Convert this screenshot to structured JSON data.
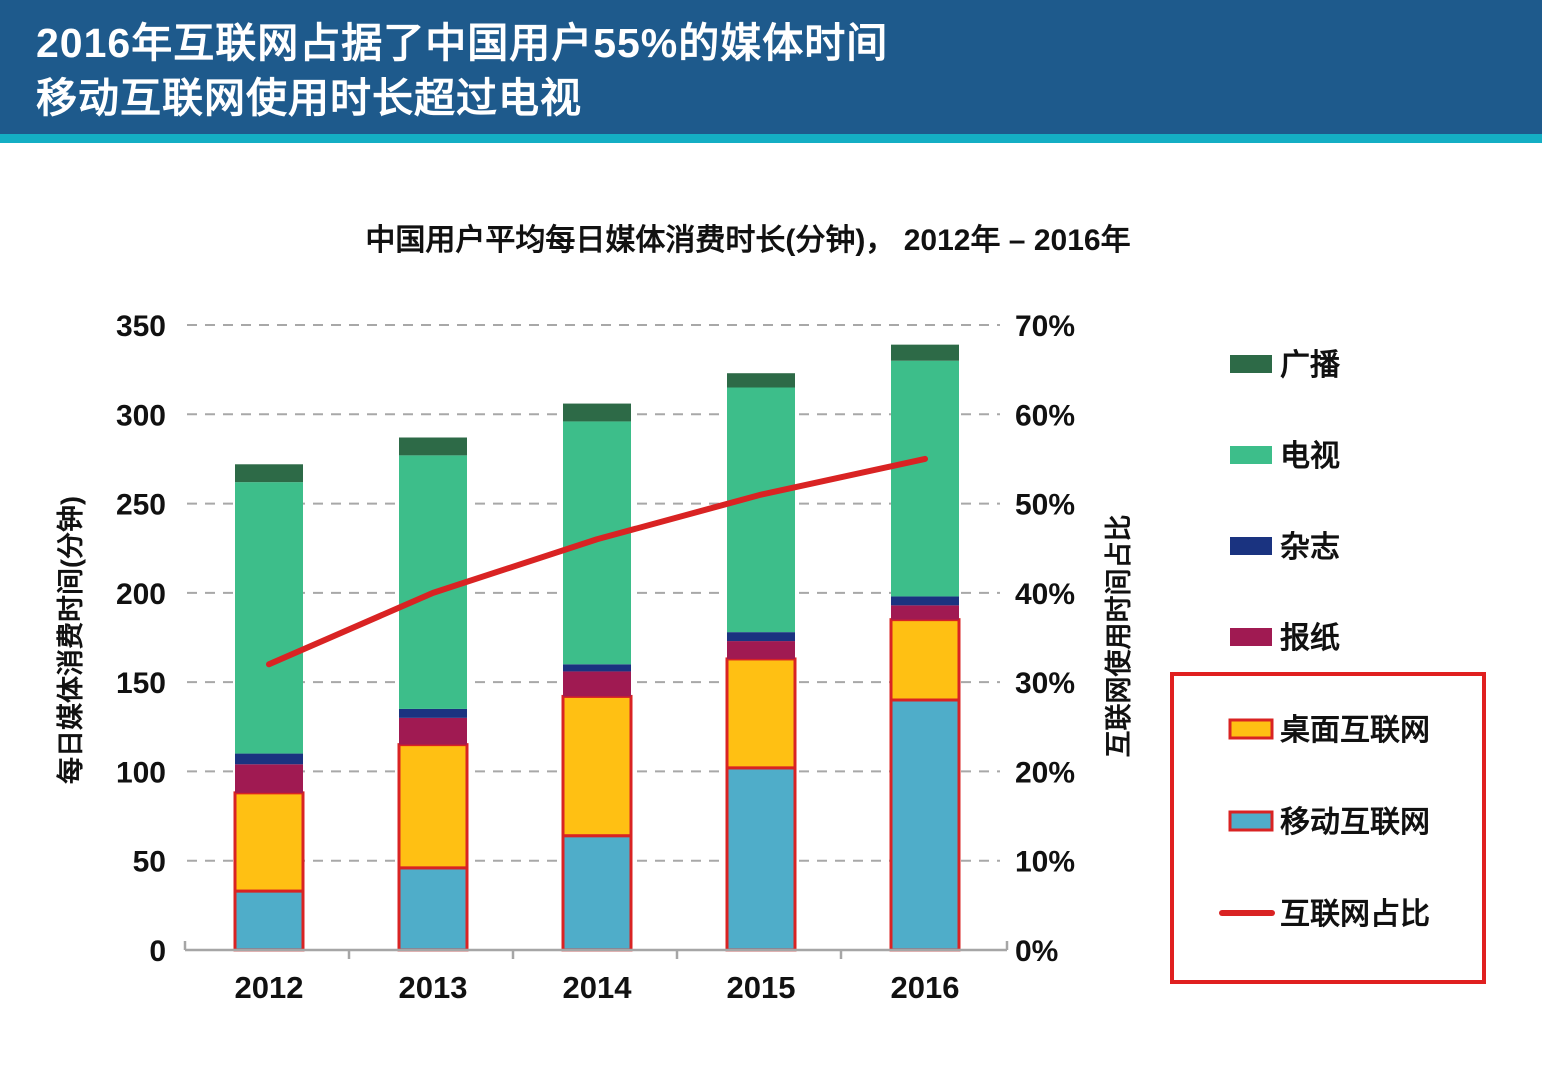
{
  "header": {
    "line1": "2016年互联网占据了中国用户55%的媒体时间",
    "line2": "移动互联网使用时长超过电视",
    "bg_color": "#1E5A8C",
    "accent_color": "#14AEC4"
  },
  "chart_data": {
    "type": "bar",
    "subtype": "stacked-bars-with-percentage-line",
    "title": "中国用户平均每日媒体消费时长(分钟)， 2012年 – 2016年",
    "categories": [
      "2012",
      "2013",
      "2014",
      "2015",
      "2016"
    ],
    "series": [
      {
        "name": "移动互联网",
        "color": "#4FADC9",
        "outline": "#D92323",
        "values": [
          33,
          46,
          64,
          102,
          140
        ]
      },
      {
        "name": "桌面互联网",
        "color": "#FFC013",
        "outline": "#D92323",
        "values": [
          55,
          69,
          78,
          61,
          45
        ]
      },
      {
        "name": "报纸",
        "color": "#A01A52",
        "values": [
          16,
          15,
          14,
          10,
          8
        ]
      },
      {
        "name": "杂志",
        "color": "#1A3380",
        "values": [
          6,
          5,
          4,
          5,
          5
        ]
      },
      {
        "name": "电视",
        "color": "#3DBE8A",
        "values": [
          152,
          142,
          136,
          137,
          132
        ]
      },
      {
        "name": "广播",
        "color": "#2D6A47",
        "values": [
          10,
          10,
          10,
          8,
          9
        ]
      }
    ],
    "bar_totals": [
      272,
      287,
      306,
      323,
      339
    ],
    "line_series": {
      "name": "互联网占比",
      "color": "#D92323",
      "values_pct": [
        32,
        40,
        46,
        51,
        55
      ]
    },
    "left_axis": {
      "label": "每日媒体消费时间(分钟)",
      "min": 0,
      "max": 350,
      "step": 50,
      "tick_labels": [
        "0",
        "50",
        "100",
        "150",
        "200",
        "250",
        "300",
        "350"
      ]
    },
    "right_axis": {
      "label": "互联网使用时间占比",
      "min": 0,
      "max": 70,
      "step": 10,
      "tick_labels": [
        "0%",
        "10%",
        "20%",
        "30%",
        "40%",
        "50%",
        "60%",
        "70%"
      ]
    },
    "grid": "dashed-horizontal",
    "grid_color": "#A8A8A8",
    "axis_color": "#A6A6A6",
    "legend": {
      "position": "right",
      "highlight_box_color": "#E02020",
      "items": [
        {
          "label": "广播",
          "type": "swatch",
          "color": "#2D6A47",
          "boxed": false
        },
        {
          "label": "电视",
          "type": "swatch",
          "color": "#3DBE8A",
          "boxed": false
        },
        {
          "label": "杂志",
          "type": "swatch",
          "color": "#1A3380",
          "boxed": false
        },
        {
          "label": "报纸",
          "type": "swatch",
          "color": "#A01A52",
          "boxed": false
        },
        {
          "label": "桌面互联网",
          "type": "swatch",
          "color": "#FFC013",
          "outline": "#D92323",
          "boxed": true
        },
        {
          "label": "移动互联网",
          "type": "swatch",
          "color": "#4FADC9",
          "outline": "#D92323",
          "boxed": true
        },
        {
          "label": "互联网占比",
          "type": "line",
          "color": "#D92323",
          "boxed": true
        }
      ]
    }
  }
}
